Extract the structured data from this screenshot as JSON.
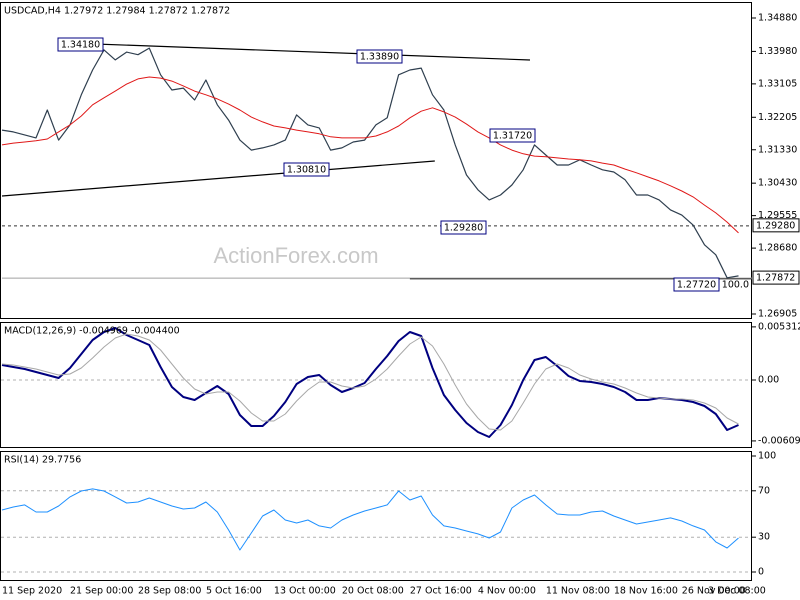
{
  "chart_data": [
    {
      "type": "line",
      "title": "USDCAD,H4  1.27972 1.27984 1.27872 1.27872",
      "watermark": "ActionForex.com",
      "ylim": [
        1.26797,
        1.35311
      ],
      "yticks": [
        {
          "value": 1.3488,
          "label": "1.34880"
        },
        {
          "value": 1.3398,
          "label": "1.33980"
        },
        {
          "value": 1.33105,
          "label": "1.33105"
        },
        {
          "value": 1.32205,
          "label": "1.32205"
        },
        {
          "value": 1.3133,
          "label": "1.31330"
        },
        {
          "value": 1.3043,
          "label": "1.30430"
        },
        {
          "value": 1.29555,
          "label": "1.29555"
        },
        {
          "value": 1.2868,
          "label": "1.28680"
        },
        {
          "value": 1.26905,
          "label": "1.26905"
        }
      ],
      "grid": false,
      "series": [
        {
          "name": "USDCAD",
          "color": "#2f3f4f",
          "width": 1.2,
          "values": [
            1.3186,
            1.3181,
            1.3173,
            1.3165,
            1.324,
            1.3159,
            1.32,
            1.3281,
            1.3348,
            1.3402,
            1.3375,
            1.3396,
            1.3389,
            1.3407,
            1.3335,
            1.3294,
            1.3299,
            1.3267,
            1.3321,
            1.3254,
            1.3213,
            1.3159,
            1.3132,
            1.3138,
            1.3146,
            1.3159,
            1.3227,
            1.32,
            1.3192,
            1.3132,
            1.3138,
            1.3154,
            1.3159,
            1.32,
            1.3219,
            1.3335,
            1.3348,
            1.3353,
            1.3281,
            1.324,
            1.3146,
            1.3065,
            1.3025,
            1.2998,
            1.3011,
            1.3038,
            1.3079,
            1.3146,
            1.3119,
            1.3092,
            1.3092,
            1.3106,
            1.3092,
            1.3079,
            1.3073,
            1.3052,
            1.3011,
            1.3011,
            1.2998,
            1.2971,
            1.2957,
            1.293,
            1.2877,
            1.285,
            1.2788,
            1.2793,
            null
          ]
        },
        {
          "name": "MA",
          "color": "#e01818",
          "width": 1,
          "values": [
            1.3146,
            1.3151,
            1.3154,
            1.3157,
            1.3162,
            1.3181,
            1.32,
            1.3224,
            1.3254,
            1.3273,
            1.3291,
            1.331,
            1.3324,
            1.3329,
            1.3326,
            1.3318,
            1.3305,
            1.3291,
            1.3281,
            1.327,
            1.3256,
            1.324,
            1.3221,
            1.3208,
            1.3197,
            1.3192,
            1.3186,
            1.3181,
            1.3176,
            1.3168,
            1.3165,
            1.3165,
            1.3165,
            1.317,
            1.3181,
            1.3197,
            1.3219,
            1.3237,
            1.3246,
            1.3235,
            1.3221,
            1.3202,
            1.3181,
            1.3165,
            1.3146,
            1.3132,
            1.3122,
            1.3116,
            1.3114,
            1.3111,
            1.3108,
            1.3106,
            1.3103,
            1.3097,
            1.3092,
            1.3081,
            1.3071,
            1.306,
            1.3049,
            1.3036,
            1.3022,
            1.3006,
            1.2984,
            1.2963,
            1.2938,
            1.2909,
            null
          ]
        }
      ],
      "trendlines": [
        {
          "start": [
            8.2,
            1.3418
          ],
          "end": [
            46.6,
            1.33749
          ]
        },
        {
          "start": [
            0,
            1.30085
          ],
          "end": [
            38.2,
            1.31028
          ]
        }
      ],
      "annotations": [
        {
          "value": 1.3418,
          "label": "1.34180"
        },
        {
          "value": 1.3389,
          "label": "1.33890"
        },
        {
          "value": 1.3081,
          "label": "1.30810"
        },
        {
          "value": 1.3172,
          "label": "1.31720"
        },
        {
          "value": 1.2928,
          "label": "1.29280"
        },
        {
          "value": 1.2772,
          "label": "1.27720"
        }
      ],
      "hlines": [
        {
          "value": 1.2928,
          "label": "1.29280",
          "style": "dashed",
          "color": "#333333",
          "from": 0,
          "label_on": "axis"
        },
        {
          "value": 1.27872,
          "label": "1.27872",
          "style": "solid",
          "color": "#a0a0a0",
          "from": 0,
          "label_on": "axis"
        },
        {
          "value": 1.2785,
          "label": "FE 100.0",
          "style": "solid",
          "color": "#333333",
          "from": 36,
          "label_on": "line"
        }
      ]
    },
    {
      "type": "line",
      "title": "MACD(12,26,9) -0.004969 -0.004400",
      "ylim": [
        -0.0067,
        0.0058
      ],
      "yticks": [
        0.005312,
        {
          "value": 0,
          "label": "0.00"
        },
        -0.006092
      ],
      "grid": true,
      "series": [
        {
          "name": "MACD",
          "color": "#000080",
          "width": 2,
          "values": [
            0.0015,
            0.0013,
            0.0011,
            0.0008,
            0.0005,
            0.0002,
            0.0012,
            0.0026,
            0.004,
            0.0048,
            0.0052,
            0.0045,
            0.004,
            0.0035,
            0.0013,
            -0.0007,
            -0.0017,
            -0.002,
            -0.0013,
            -0.0006,
            -0.0014,
            -0.0035,
            -0.0046,
            -0.0046,
            -0.0036,
            -0.0022,
            -0.0004,
            0.0003,
            0.0005,
            -0.0005,
            -0.0012,
            -0.0008,
            -0.0003,
            0.0011,
            0.0024,
            0.0039,
            0.0048,
            0.0044,
            0.0012,
            -0.0015,
            -0.003,
            -0.0043,
            -0.0052,
            -0.0057,
            -0.0045,
            -0.0025,
            0.0,
            0.002,
            0.0023,
            0.0014,
            0.0004,
            -0.0001,
            -0.0002,
            -0.0004,
            -0.0007,
            -0.0012,
            -0.002,
            -0.002,
            -0.0018,
            -0.0019,
            -0.002,
            -0.0022,
            -0.0026,
            -0.0034,
            -0.005,
            -0.0045,
            null
          ]
        },
        {
          "name": "Signal",
          "color": "#a8a8a8",
          "width": 1,
          "values": [
            0.0016,
            0.0015,
            0.0013,
            0.0011,
            0.0008,
            0.0005,
            0.0006,
            0.0012,
            0.0022,
            0.0033,
            0.0042,
            0.0046,
            0.0044,
            0.004,
            0.003,
            0.0016,
            0.0002,
            -0.0009,
            -0.0014,
            -0.0012,
            -0.0012,
            -0.0021,
            -0.0033,
            -0.0041,
            -0.0041,
            -0.0034,
            -0.0021,
            -0.001,
            -0.0002,
            -0.0002,
            -0.0006,
            -0.0008,
            -0.0006,
            0.0001,
            0.0011,
            0.0024,
            0.0036,
            0.0043,
            0.0034,
            0.0016,
            -0.0005,
            -0.0024,
            -0.0038,
            -0.0049,
            -0.005,
            -0.0041,
            -0.0023,
            -0.0004,
            0.0011,
            0.0016,
            0.0012,
            0.0005,
            0.0001,
            -0.0002,
            -0.0004,
            -0.0008,
            -0.0013,
            -0.0017,
            -0.0018,
            -0.0019,
            -0.0019,
            -0.002,
            -0.0023,
            -0.0028,
            -0.0038,
            -0.0044,
            null
          ]
        }
      ]
    },
    {
      "type": "line",
      "title": "RSI(14) 29.7756",
      "ylim": [
        -6.9,
        104.3
      ],
      "yticks": [
        100,
        70,
        30,
        0
      ],
      "grid": true,
      "categories": [
        "11 Sep 2020",
        null,
        null,
        null,
        null,
        null,
        "21 Sep 00:00",
        null,
        null,
        null,
        null,
        null,
        "28 Sep 08:00",
        null,
        null,
        null,
        null,
        null,
        "5 Oct 16:00",
        null,
        null,
        null,
        null,
        null,
        "13 Oct 00:00",
        null,
        null,
        null,
        null,
        null,
        "20 Oct 08:00",
        null,
        null,
        null,
        null,
        null,
        "27 Oct 16:00",
        null,
        null,
        null,
        null,
        null,
        "4 Nov 00:00",
        null,
        null,
        null,
        null,
        null,
        "11 Nov 08:00",
        null,
        null,
        null,
        null,
        null,
        "18 Nov 16:00",
        null,
        null,
        null,
        null,
        null,
        "26 Nov 00:00",
        null,
        null,
        null,
        null,
        null,
        "3 Dec 08:00"
      ],
      "series": [
        {
          "name": "RSI",
          "color": "#1e90ff",
          "width": 1,
          "values": [
            53.4,
            56.0,
            57.8,
            51.7,
            51.7,
            56.9,
            64.7,
            69.8,
            71.6,
            69.8,
            64.7,
            59.5,
            60.3,
            63.8,
            60.3,
            56.9,
            54.3,
            55.2,
            60.3,
            51.7,
            36.2,
            19.0,
            33.6,
            48.3,
            53.4,
            44.8,
            42.2,
            44.8,
            39.7,
            37.9,
            44.8,
            49.1,
            52.6,
            55.2,
            57.8,
            69.8,
            62.1,
            65.5,
            49.1,
            39.7,
            37.9,
            35.3,
            32.8,
            29.3,
            34.5,
            55.2,
            62.1,
            66.4,
            57.8,
            50.0,
            49.1,
            49.1,
            51.7,
            52.6,
            48.3,
            44.8,
            41.4,
            43.1,
            44.8,
            46.6,
            44.0,
            39.7,
            36.2,
            25.9,
            20.7,
            29.3,
            null
          ]
        }
      ]
    }
  ]
}
